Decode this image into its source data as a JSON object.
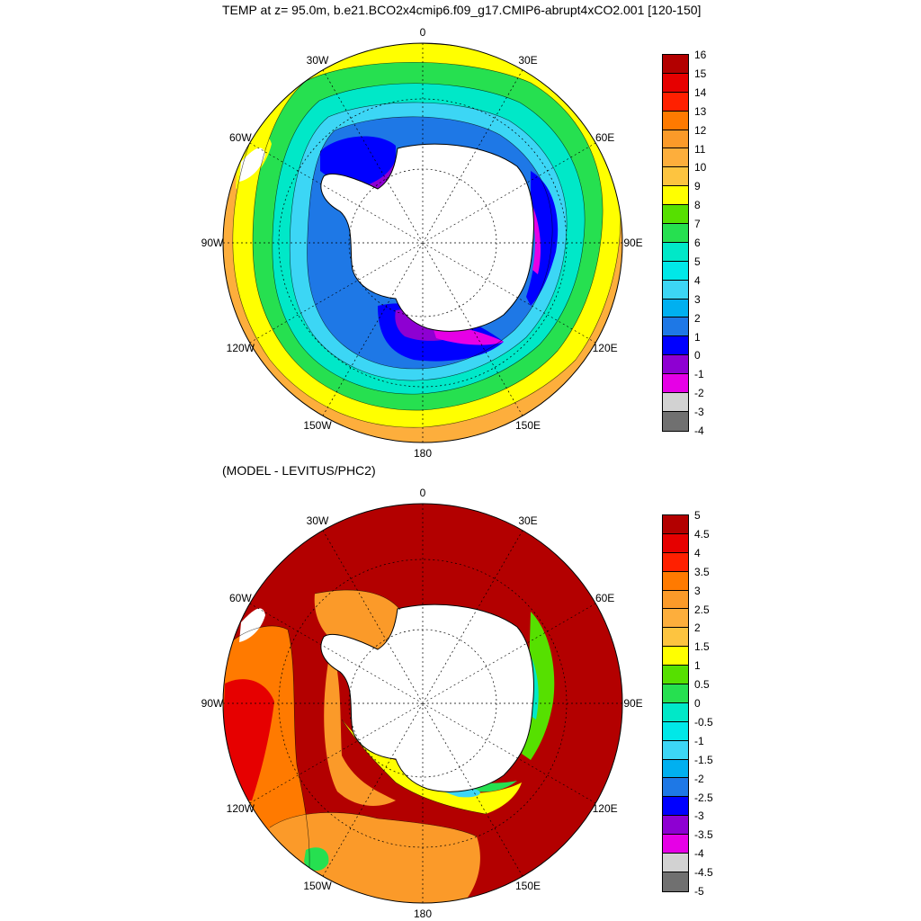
{
  "title": "TEMP at z=  95.0m, b.e21.BCO2x4cmip6.f09_g17.CMIP6-abrupt4xCO2.001 [120-150]",
  "subtitle": "(MODEL - LEVITUS/PHC2)",
  "colors": {
    "land": "#ffffff",
    "coast": "#000000",
    "grid": "#000000"
  },
  "maps": [
    {
      "id": "temp",
      "longitude_labels": [
        "0",
        "30E",
        "60E",
        "90E",
        "120E",
        "150E",
        "180",
        "150W",
        "120W",
        "90W",
        "60W",
        "30W"
      ],
      "colorbar": {
        "ticks": [
          "16",
          "15",
          "14",
          "13",
          "12",
          "11",
          "10",
          "9",
          "8",
          "7",
          "6",
          "5",
          "4",
          "3",
          "2",
          "1",
          "0",
          "-1",
          "-2",
          "-3",
          "-4"
        ],
        "colors": [
          "#b30000",
          "#e60000",
          "#ff2000",
          "#ff7a00",
          "#fb9a29",
          "#fdae3c",
          "#fdc440",
          "#ffff00",
          "#56e000",
          "#26e050",
          "#00e8c8",
          "#00e8e8",
          "#3cd6f5",
          "#00b0f0",
          "#1e78e6",
          "#0000ff",
          "#8e00d2",
          "#e600e6",
          "#d2d2d2",
          "#707070"
        ]
      }
    },
    {
      "id": "diff",
      "longitude_labels": [
        "0",
        "30E",
        "60E",
        "90E",
        "120E",
        "150E",
        "180",
        "150W",
        "120W",
        "90W",
        "60W",
        "30W"
      ],
      "colorbar": {
        "ticks": [
          "5",
          "4.5",
          "4",
          "3.5",
          "3",
          "2.5",
          "2",
          "1.5",
          "1",
          "0.5",
          "0",
          "-0.5",
          "-1",
          "-1.5",
          "-2",
          "-2.5",
          "-3",
          "-3.5",
          "-4",
          "-4.5",
          "-5"
        ],
        "colors": [
          "#b30000",
          "#e60000",
          "#ff2000",
          "#ff7a00",
          "#fb9a29",
          "#fdae3c",
          "#fdc440",
          "#ffff00",
          "#56e000",
          "#26e050",
          "#00e8c8",
          "#00e8e8",
          "#3cd6f5",
          "#00b0f0",
          "#1e78e6",
          "#0000ff",
          "#8e00d2",
          "#e600e6",
          "#d2d2d2",
          "#707070"
        ]
      }
    }
  ]
}
